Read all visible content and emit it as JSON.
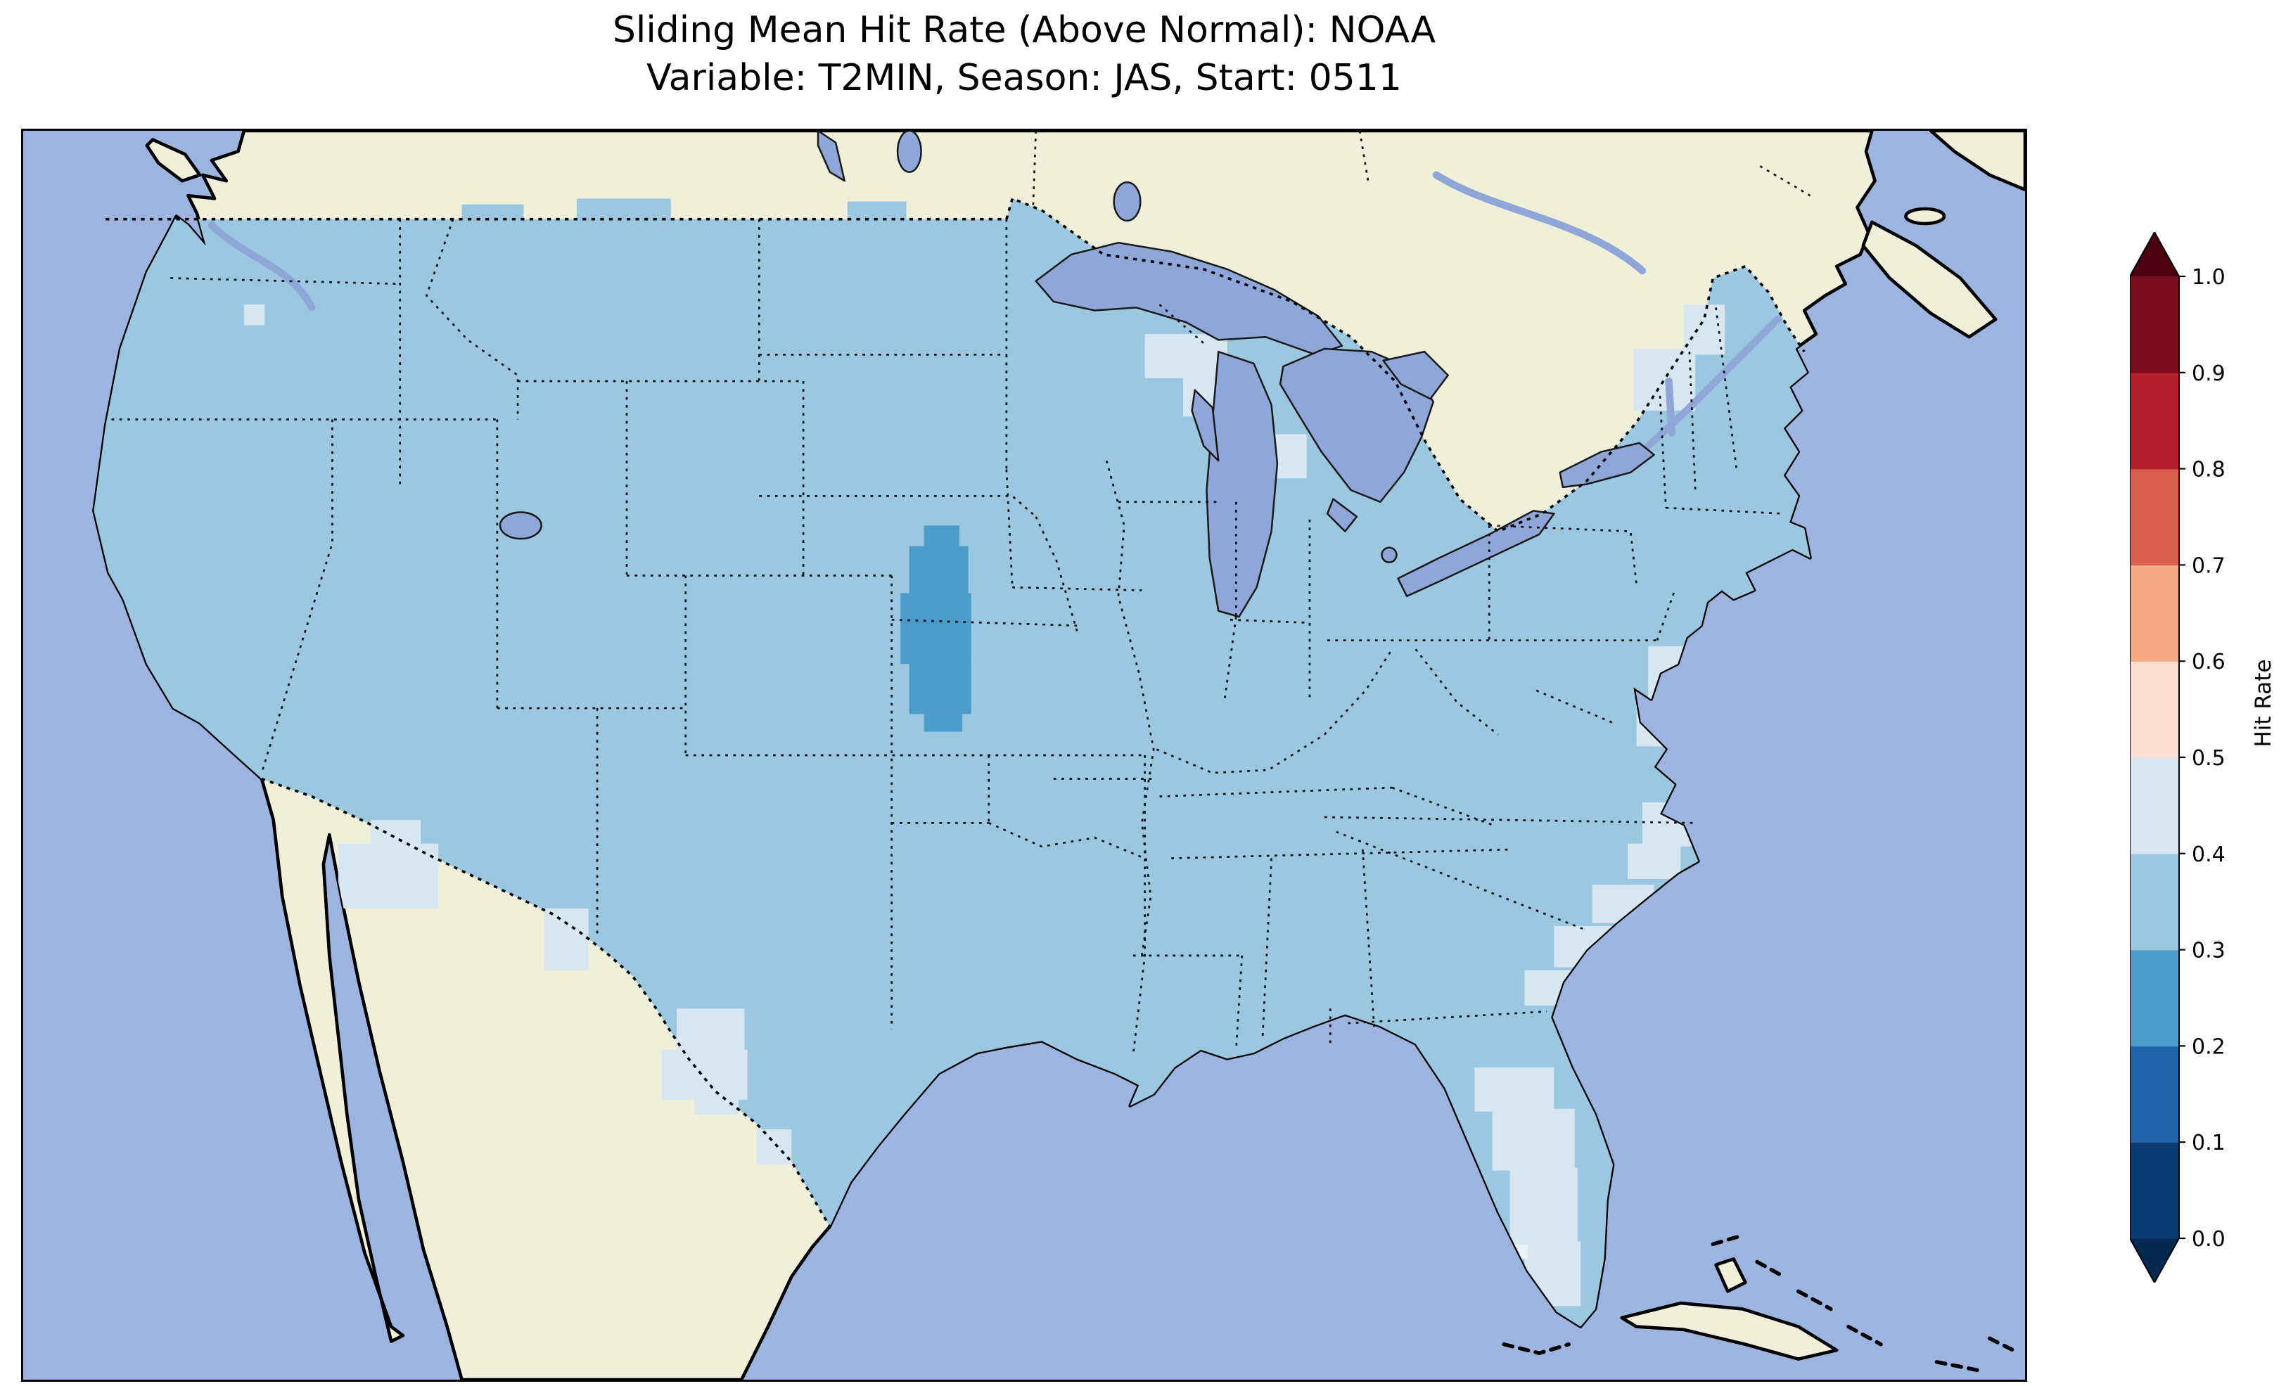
{
  "title": {
    "line1": "Sliding Mean Hit Rate (Above Normal): NOAA",
    "line2": "Variable: T2MIN, Season: JAS, Start: 0511"
  },
  "colorbar": {
    "label": "Hit Rate",
    "ticks_top_to_bottom": [
      "1.0",
      "0.9",
      "0.8",
      "0.7",
      "0.6",
      "0.5",
      "0.4",
      "0.3",
      "0.2",
      "0.1",
      "0.0"
    ],
    "bin_colors_bottom_to_top": [
      "#0a3b70",
      "#1f63a8",
      "#4d9bc9",
      "#9cc7e0",
      "#d7e6f0",
      "#fbdfd0",
      "#f5a985",
      "#d8604d",
      "#b51f2e",
      "#7a0c20"
    ],
    "extend_low_color": "#062952",
    "extend_high_color": "#4a000f"
  },
  "map": {
    "ocean_color": "#9cb4df",
    "land_color": "#f0efda",
    "lake_color": "#8fa6d8",
    "base_value": 0.35,
    "regions": [
      {
        "name": "central-plains",
        "value": 0.25,
        "rects": [
          [
            612,
            268,
            24,
            16
          ],
          [
            602,
            282,
            40,
            34
          ],
          [
            596,
            314,
            48,
            48
          ],
          [
            602,
            360,
            42,
            36
          ],
          [
            612,
            394,
            26,
            14
          ]
        ]
      },
      {
        "name": "arizona-new-mexico",
        "value": 0.45,
        "rects": [
          [
            214,
            484,
            68,
            44
          ],
          [
            236,
            468,
            34,
            18
          ]
        ]
      },
      {
        "name": "new-mexico-small",
        "value": 0.45,
        "rects": [
          [
            354,
            528,
            30,
            42
          ]
        ]
      },
      {
        "name": "west-texas",
        "value": 0.45,
        "rects": [
          [
            444,
            596,
            46,
            30
          ],
          [
            434,
            624,
            58,
            34
          ],
          [
            456,
            652,
            30,
            16
          ]
        ]
      },
      {
        "name": "south-texas",
        "value": 0.45,
        "rects": [
          [
            498,
            678,
            24,
            24
          ]
        ]
      },
      {
        "name": "florida-peninsula",
        "value": 0.45,
        "rects": [
          [
            986,
            636,
            54,
            30
          ],
          [
            998,
            664,
            56,
            42
          ],
          [
            1010,
            704,
            46,
            52
          ],
          [
            1020,
            754,
            38,
            44
          ]
        ]
      },
      {
        "name": "southeast-coast",
        "value": 0.45,
        "rects": [
          [
            1020,
            570,
            34,
            24
          ],
          [
            1040,
            540,
            46,
            28
          ],
          [
            1066,
            512,
            42,
            26
          ],
          [
            1090,
            484,
            36,
            24
          ],
          [
            1100,
            456,
            34,
            30
          ]
        ]
      },
      {
        "name": "mid-atlantic-coast",
        "value": 0.45,
        "rects": [
          [
            1104,
            350,
            30,
            42
          ],
          [
            1096,
            390,
            28,
            28
          ]
        ]
      },
      {
        "name": "upper-great-lakes",
        "value": 0.45,
        "rects": [
          [
            762,
            138,
            56,
            30
          ],
          [
            788,
            166,
            32,
            28
          ],
          [
            846,
            206,
            26,
            30
          ]
        ]
      },
      {
        "name": "northeast",
        "value": 0.45,
        "rects": [
          [
            1094,
            148,
            42,
            42
          ],
          [
            1128,
            118,
            28,
            34
          ]
        ]
      },
      {
        "name": "pacific-northwest-dot",
        "value": 0.45,
        "rects": [
          [
            150,
            118,
            14,
            14
          ]
        ]
      },
      {
        "name": "canada-border-strip",
        "value": 0.35,
        "rects": [
          [
            376,
            46,
            64,
            16
          ],
          [
            298,
            50,
            42,
            12
          ],
          [
            560,
            48,
            40,
            14
          ]
        ]
      },
      {
        "name": "south-florida-dots",
        "value": 0.45,
        "color": "#eaf1f7",
        "rects": [
          [
            994,
            754,
            10,
            10
          ],
          [
            1012,
            756,
            10,
            10
          ]
        ]
      }
    ]
  },
  "chart_data": {
    "type": "heatmap",
    "title": "Sliding Mean Hit Rate (Above Normal): NOAA",
    "subtitle": "Variable: T2MIN, Season: JAS, Start: 0511",
    "source": "NOAA",
    "variable": "T2MIN",
    "season": "JAS",
    "start": "0511",
    "geography": "Contiguous United States with surrounding Canada, Mexico, Gulf of Mexico and Atlantic",
    "colorbar_label": "Hit Rate",
    "colorbar_ticks": [
      0.0,
      0.1,
      0.2,
      0.3,
      0.4,
      0.5,
      0.6,
      0.7,
      0.8,
      0.9,
      1.0
    ],
    "colorbar_extend": "both",
    "colormap": "RdBu_r discrete with 0.1-wide bins",
    "value_range_displayed": [
      0.2,
      0.5
    ],
    "region_values": [
      {
        "region": "Most of the contiguous United States",
        "hit_rate": 0.35
      },
      {
        "region": "Central Great Plains (Nebraska/Kansas patch)",
        "hit_rate": 0.25
      },
      {
        "region": "Arizona/New Mexico border area",
        "hit_rate": 0.45
      },
      {
        "region": "West and south Texas patches",
        "hit_rate": 0.45
      },
      {
        "region": "Florida peninsula",
        "hit_rate": 0.45
      },
      {
        "region": "Carolinas/Georgia coastal strip",
        "hit_rate": 0.45
      },
      {
        "region": "Mid-Atlantic coast (NJ/Delmarva)",
        "hit_rate": 0.45
      },
      {
        "region": "Upper Great Lakes shores (WI/MI)",
        "hit_rate": 0.45
      },
      {
        "region": "Northern New England patches",
        "hit_rate": 0.45
      }
    ]
  }
}
